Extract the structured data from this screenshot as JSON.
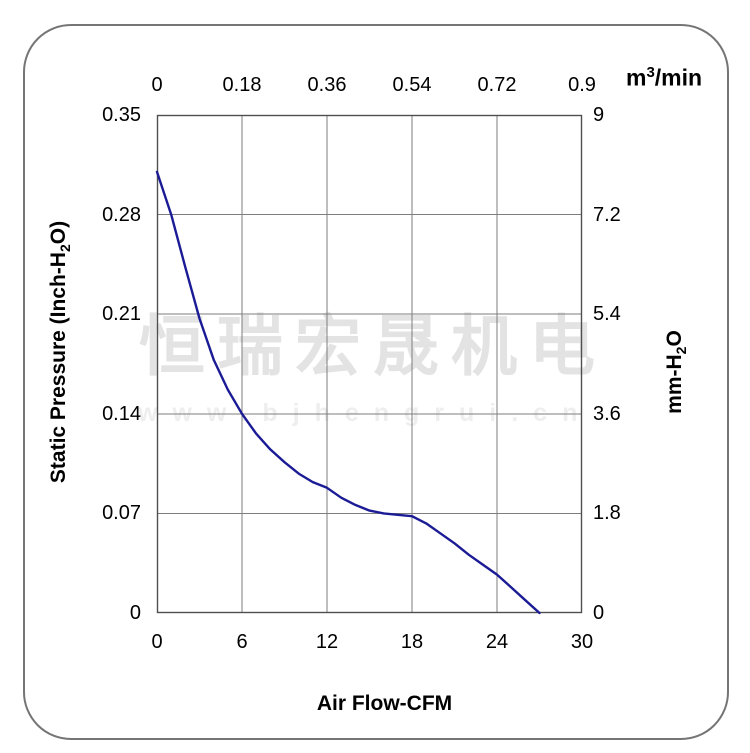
{
  "watermark": {
    "line1": "恒瑞宏晟机电",
    "line2": "www.bjhengrui.cn"
  },
  "axis_titles": {
    "top_pre": "m",
    "top_sup": "3",
    "top_post": "/min",
    "bottom": "Air Flow-CFM",
    "left_pre": "Static Pressure (Inch-H",
    "left_sub": "2",
    "left_post": "O)",
    "right_pre": "mm-H",
    "right_sub": "2",
    "right_post": "O"
  },
  "colors": {
    "curve": "#1b1b96",
    "grid": "#7e7e7e",
    "plot_border": "#4f4f4f",
    "panel_border": "#757575",
    "watermark_zh": "#e3e3e3",
    "watermark_url": "#eeeeee"
  },
  "chart_data": {
    "type": "line",
    "title": "",
    "xlabel": "Air Flow-CFM",
    "ylabel_left": "Static Pressure (Inch-H2O)",
    "ylabel_right": "mm-H2O",
    "xlabel_top": "m3/min",
    "grid": true,
    "legend": false,
    "axes": {
      "bottom": {
        "ticks": [
          "0",
          "6",
          "12",
          "18",
          "24",
          "30"
        ],
        "range": [
          0,
          30
        ]
      },
      "top": {
        "ticks": [
          "0",
          "0.18",
          "0.36",
          "0.54",
          "0.72",
          "0.9"
        ],
        "range": [
          0,
          0.9
        ]
      },
      "left": {
        "ticks": [
          "0.35",
          "0.28",
          "0.21",
          "0.14",
          "0.07",
          "0"
        ],
        "range": [
          0.35,
          0
        ]
      },
      "right": {
        "ticks": [
          "9",
          "7.2",
          "5.4",
          "3.6",
          "1.8",
          "0"
        ],
        "range": [
          9,
          0
        ]
      }
    },
    "series": [
      {
        "name": "static-pressure-vs-airflow",
        "x_units": "CFM",
        "y_units": "Inch-H2O",
        "points": [
          [
            0,
            0.31
          ],
          [
            1,
            0.28
          ],
          [
            2,
            0.243
          ],
          [
            3,
            0.207
          ],
          [
            4,
            0.178
          ],
          [
            5,
            0.157
          ],
          [
            6,
            0.14
          ],
          [
            7,
            0.126
          ],
          [
            8,
            0.115
          ],
          [
            9,
            0.106
          ],
          [
            10,
            0.098
          ],
          [
            11,
            0.092
          ],
          [
            12,
            0.088
          ],
          [
            13,
            0.081
          ],
          [
            14,
            0.076
          ],
          [
            15,
            0.072
          ],
          [
            16,
            0.07
          ],
          [
            17,
            0.069
          ],
          [
            18,
            0.068
          ],
          [
            19,
            0.063
          ],
          [
            20,
            0.056
          ],
          [
            21,
            0.049
          ],
          [
            22,
            0.041
          ],
          [
            23,
            0.034
          ],
          [
            24,
            0.027
          ],
          [
            25,
            0.018
          ],
          [
            26,
            0.009
          ],
          [
            27,
            0.0
          ]
        ]
      }
    ]
  }
}
